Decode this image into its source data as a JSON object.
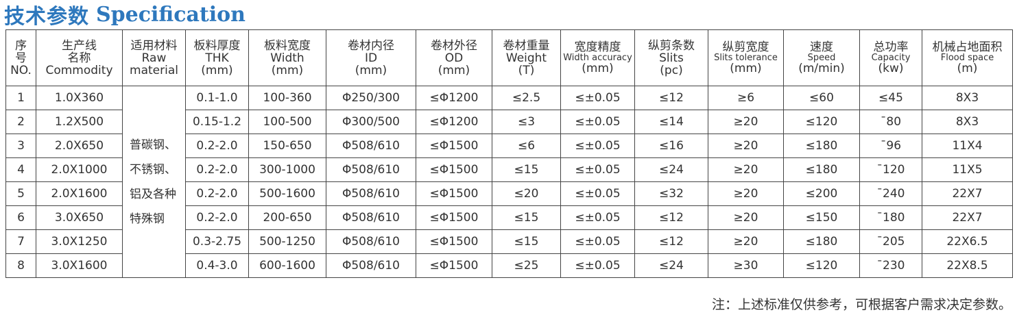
{
  "title": {
    "cn": "技术参数",
    "en": "Specification"
  },
  "headers": [
    {
      "l1": "序",
      "l2": "号",
      "l3": "NO."
    },
    {
      "l1": "生产线",
      "l2": "名称",
      "l3": "Commodity"
    },
    {
      "l1": "适用材料",
      "l2": "Raw",
      "l3": "material"
    },
    {
      "l1": "板料厚度",
      "l2": "THK",
      "l3": "(mm)"
    },
    {
      "l1": "板料宽度",
      "l2": "Width",
      "l3": "(mm)"
    },
    {
      "l1": "卷材内径",
      "l2": "ID",
      "l3": "(mm)"
    },
    {
      "l1": "卷材外径",
      "l2": "OD",
      "l3": "(mm)"
    },
    {
      "l1": "卷材重量",
      "l2": "Weight",
      "l3": "(T)"
    },
    {
      "l1": "宽度精度",
      "l2": "Width accuracy",
      "l3": "(mm)"
    },
    {
      "l1": "纵剪条数",
      "l2": "Slits",
      "l3": "(pc)"
    },
    {
      "l1": "纵剪宽度",
      "l2": "Slits tolerance",
      "l3": "(mm)"
    },
    {
      "l1": "速度",
      "l2": "Speed",
      "l3": "(m/min)"
    },
    {
      "l1": "总功率",
      "l2": "Capacity",
      "l3": "(kw)"
    },
    {
      "l1": "机械占地面积",
      "l2": "Flood space",
      "l3": "(m)"
    }
  ],
  "raw_material": "普碳钢、不锈钢、铝及各种特殊钢",
  "rows": [
    [
      "1",
      "1.0X360",
      "0.1-1.0",
      "100-360",
      "Φ250/300",
      "≤Φ1200",
      "≤2.5",
      "≤±0.05",
      "≤12",
      "≥6",
      "≤60",
      "≤45",
      "8X3"
    ],
    [
      "2",
      "1.2X500",
      "0.15-1.2",
      "100-500",
      "Φ300/500",
      "≤Φ1200",
      "≤3",
      "≤±0.05",
      "≤14",
      "≥20",
      "≤120",
      "¯80",
      "8X3"
    ],
    [
      "3",
      "2.0X650",
      "0.2-2.0",
      "150-650",
      "Φ508/610",
      "≤Φ1500",
      "≤6",
      "≤±0.05",
      "≤16",
      "≥20",
      "≤180",
      "¯96",
      "11X4"
    ],
    [
      "4",
      "2.0X1000",
      "0.2-2.0",
      "300-1000",
      "Φ508/610",
      "≤Φ1500",
      "≤15",
      "≤±0.05",
      "≤24",
      "≥20",
      "≤180",
      "¯120",
      "11X5"
    ],
    [
      "5",
      "2.0X1600",
      "0.2-2.0",
      "500-1600",
      "Φ508/610",
      "≤Φ1500",
      "≤20",
      "≤±0.05",
      "≤32",
      "≥20",
      "≤200",
      "¯240",
      "22X7"
    ],
    [
      "6",
      "3.0X650",
      "0.2-2.0",
      "200-650",
      "Φ508/610",
      "≤Φ1500",
      "≤15",
      "≤±0.05",
      "≤12",
      "≥20",
      "≤150",
      "¯180",
      "22X7"
    ],
    [
      "7",
      "3.0X1250",
      "0.3-2.75",
      "500-1250",
      "Φ508/610",
      "≤Φ1500",
      "≤15",
      "≤±0.05",
      "≤12",
      "≥20",
      "≤180",
      "¯205",
      "22X6.5"
    ],
    [
      "8",
      "3.0X1600",
      "0.4-3.0",
      "600-1600",
      "Φ508/610",
      "≤Φ1500",
      "≤25",
      "≤±0.05",
      "≤24",
      "≥30",
      "≤120",
      "¯230",
      "22X8.5"
    ]
  ],
  "note": "注：上述标准仅供参考，可根据客户需求决定参数。"
}
